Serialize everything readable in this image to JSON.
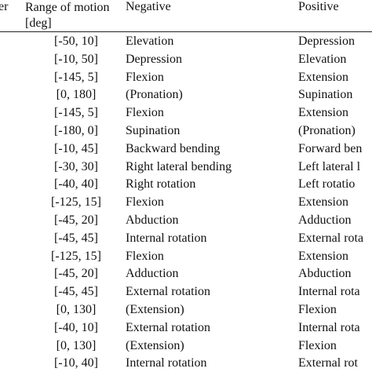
{
  "table": {
    "header": [
      "er",
      "Range of motion [deg]",
      "Negative",
      "Positive"
    ],
    "rows": [
      [
        "[-50, 10]",
        "Elevation",
        "Depression"
      ],
      [
        "[-10, 50]",
        "Depression",
        "Elevation"
      ],
      [
        "[-145, 5]",
        "Flexion",
        "Extension"
      ],
      [
        "[0, 180]",
        "(Pronation)",
        "Supination"
      ],
      [
        "[-145, 5]",
        "Flexion",
        "Extension"
      ],
      [
        "[-180, 0]",
        "Supination",
        "(Pronation)"
      ],
      [
        "[-10, 45]",
        "Backward bending",
        "Forward ben"
      ],
      [
        "[-30, 30]",
        "Right lateral bending",
        "Left lateral l"
      ],
      [
        "[-40, 40]",
        "Right rotation",
        "Left rotatio"
      ],
      [
        "[-125, 15]",
        "Flexion",
        "Extension"
      ],
      [
        "[-45, 20]",
        "Abduction",
        "Adduction"
      ],
      [
        "[-45, 45]",
        "Internal rotation",
        "External rota"
      ],
      [
        "[-125, 15]",
        "Flexion",
        "Extension"
      ],
      [
        "[-45, 20]",
        "Adduction",
        "Abduction"
      ],
      [
        "[-45, 45]",
        "External rotation",
        "Internal rota"
      ],
      [
        "[0, 130]",
        "(Extension)",
        "Flexion"
      ],
      [
        "[-40, 10]",
        "External rotation",
        "Internal rota"
      ],
      [
        "[0, 130]",
        "(Extension)",
        "Flexion"
      ],
      [
        "[-10, 40]",
        "Internal rotation",
        "External rot"
      ]
    ]
  }
}
